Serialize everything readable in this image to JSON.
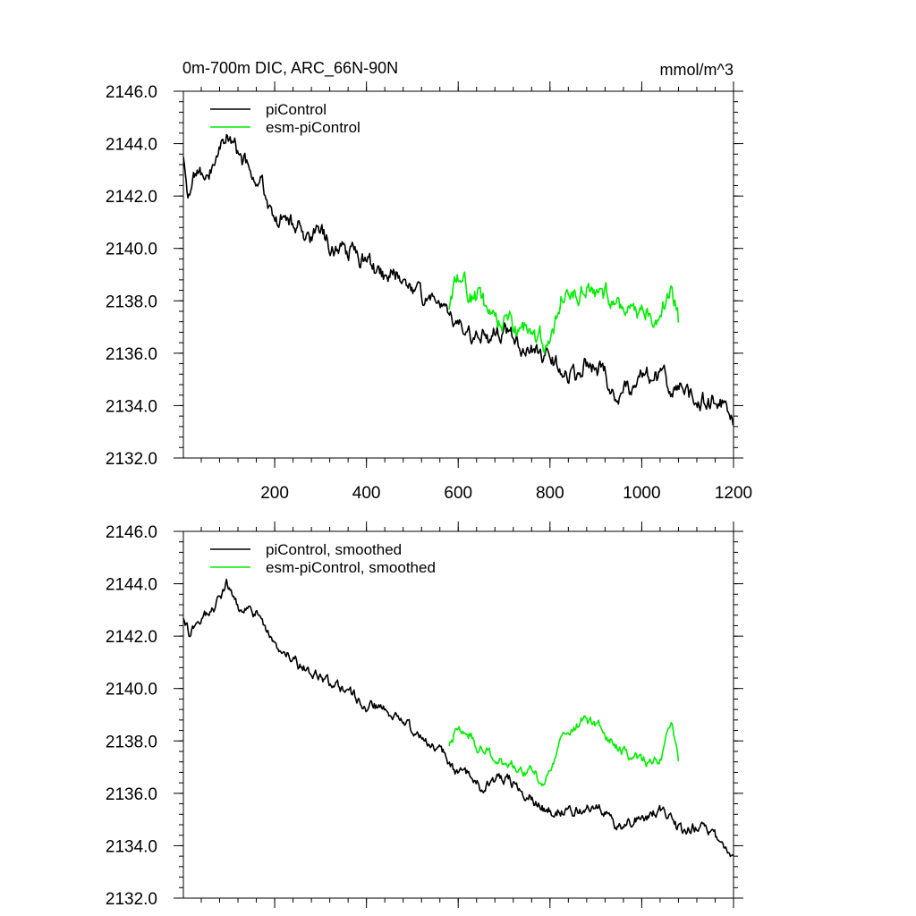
{
  "title_left": "0m-700m DIC, ARC_66N-90N",
  "title_right": "mmol/m^3",
  "colors": {
    "piControl": "#000000",
    "esm_piControl": "#00ee00"
  },
  "chart_data": [
    {
      "type": "line",
      "title": "0m-700m DIC, ARC_66N-90N",
      "units": "mmol/m^3",
      "xlim": [
        1,
        1200
      ],
      "ylim": [
        2132,
        2146
      ],
      "yticks": [
        2132,
        2134,
        2136,
        2138,
        2140,
        2142,
        2144,
        2146
      ],
      "ytick_labels": [
        "2132.0",
        "2134.0",
        "2136.0",
        "2138.0",
        "2140.0",
        "2142.0",
        "2144.0",
        "2146.0"
      ],
      "xticks": [
        200,
        400,
        600,
        800,
        1000,
        1200
      ],
      "xtick_labels": [
        "200",
        "400",
        "600",
        "800",
        "1000",
        "1200"
      ],
      "legend": "top-left",
      "series": [
        {
          "name": "piControl",
          "color_key": "piControl",
          "amp": 0.5,
          "seed": 3,
          "anchors": [
            [
              1,
              2143.4
            ],
            [
              10,
              2141.6
            ],
            [
              30,
              2142.5
            ],
            [
              60,
              2143.0
            ],
            [
              95,
              2143.9
            ],
            [
              130,
              2143.2
            ],
            [
              170,
              2142.8
            ],
            [
              200,
              2141.4
            ],
            [
              250,
              2140.8
            ],
            [
              300,
              2140.2
            ],
            [
              350,
              2139.8
            ],
            [
              400,
              2139.3
            ],
            [
              450,
              2139.0
            ],
            [
              500,
              2138.2
            ],
            [
              540,
              2138.0
            ],
            [
              580,
              2137.2
            ],
            [
              620,
              2136.7
            ],
            [
              650,
              2136.2
            ],
            [
              700,
              2136.6
            ],
            [
              750,
              2136.1
            ],
            [
              800,
              2135.6
            ],
            [
              850,
              2135.1
            ],
            [
              900,
              2135.7
            ],
            [
              950,
              2134.6
            ],
            [
              1000,
              2135.4
            ],
            [
              1040,
              2135.2
            ],
            [
              1080,
              2134.7
            ],
            [
              1120,
              2134.3
            ],
            [
              1160,
              2134.2
            ],
            [
              1200,
              2133.3
            ]
          ]
        },
        {
          "name": "esm-piControl",
          "color_key": "esm_piControl",
          "amp": 0.55,
          "seed": 11,
          "anchors": [
            [
              580,
              2137.9
            ],
            [
              600,
              2138.6
            ],
            [
              640,
              2137.8
            ],
            [
              680,
              2137.2
            ],
            [
              720,
              2137.0
            ],
            [
              760,
              2136.8
            ],
            [
              790,
              2136.4
            ],
            [
              830,
              2138.3
            ],
            [
              870,
              2138.6
            ],
            [
              910,
              2138.5
            ],
            [
              950,
              2137.8
            ],
            [
              1000,
              2137.4
            ],
            [
              1040,
              2137.3
            ],
            [
              1065,
              2138.6
            ],
            [
              1080,
              2137.1
            ]
          ]
        }
      ]
    },
    {
      "type": "line",
      "xlim": [
        1,
        1200
      ],
      "ylim": [
        2132,
        2146
      ],
      "yticks": [
        2132,
        2134,
        2136,
        2138,
        2140,
        2142,
        2144,
        2146
      ],
      "ytick_labels": [
        "2132.0",
        "2134.0",
        "2136.0",
        "2138.0",
        "2140.0",
        "2142.0",
        "2144.0",
        "2146.0"
      ],
      "xticks": [
        200,
        400,
        600,
        800,
        1000,
        1200
      ],
      "xtick_labels": [],
      "legend": "top-left",
      "series": [
        {
          "name": "piControl, smoothed",
          "color_key": "piControl",
          "amp": 0.3,
          "seed": 5,
          "anchors": [
            [
              1,
              2142.6
            ],
            [
              15,
              2142.0
            ],
            [
              40,
              2142.8
            ],
            [
              70,
              2143.0
            ],
            [
              95,
              2143.9
            ],
            [
              130,
              2143.1
            ],
            [
              170,
              2142.9
            ],
            [
              200,
              2141.5
            ],
            [
              250,
              2140.8
            ],
            [
              300,
              2140.4
            ],
            [
              350,
              2140.0
            ],
            [
              400,
              2139.4
            ],
            [
              450,
              2139.2
            ],
            [
              500,
              2138.3
            ],
            [
              540,
              2138.0
            ],
            [
              580,
              2137.3
            ],
            [
              620,
              2136.8
            ],
            [
              650,
              2136.3
            ],
            [
              700,
              2136.5
            ],
            [
              750,
              2136.0
            ],
            [
              800,
              2135.5
            ],
            [
              850,
              2135.2
            ],
            [
              900,
              2135.6
            ],
            [
              950,
              2134.7
            ],
            [
              1000,
              2135.2
            ],
            [
              1040,
              2135.3
            ],
            [
              1080,
              2134.6
            ],
            [
              1120,
              2134.6
            ],
            [
              1160,
              2134.3
            ],
            [
              1200,
              2133.5
            ]
          ]
        },
        {
          "name": "esm-piControl, smoothed",
          "color_key": "esm_piControl",
          "amp": 0.3,
          "seed": 13,
          "anchors": [
            [
              580,
              2137.9
            ],
            [
              600,
              2138.7
            ],
            [
              640,
              2137.8
            ],
            [
              680,
              2137.2
            ],
            [
              720,
              2137.0
            ],
            [
              760,
              2136.8
            ],
            [
              790,
              2136.3
            ],
            [
              830,
              2138.3
            ],
            [
              870,
              2138.7
            ],
            [
              910,
              2138.5
            ],
            [
              950,
              2137.7
            ],
            [
              1000,
              2137.4
            ],
            [
              1040,
              2137.3
            ],
            [
              1065,
              2138.8
            ],
            [
              1080,
              2137.2
            ]
          ]
        }
      ]
    }
  ]
}
